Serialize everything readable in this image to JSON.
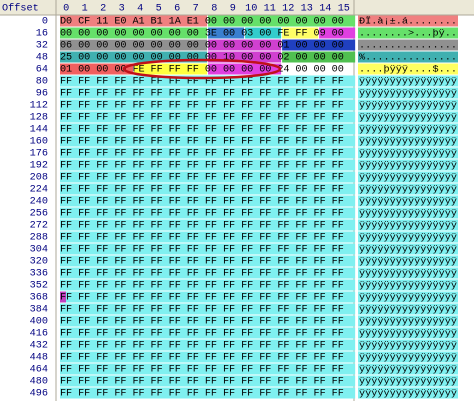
{
  "header": {
    "offset_label": "Offset",
    "columns": [
      "0",
      "1",
      "2",
      "3",
      "4",
      "5",
      "6",
      "7",
      "8",
      "9",
      "10",
      "11",
      "12",
      "13",
      "14",
      "15"
    ]
  },
  "rows": [
    {
      "offset": "0",
      "hex": "D0 CF 11 E0 A1 B1 1A E1 00 00 00 00 00 00 00 00",
      "ascii": "ÐÏ.à¡±.á........"
    },
    {
      "offset": "16",
      "hex": "00 00 00 00 00 00 00 00 3E 00 03 00 FE FF 09 00",
      "ascii": "........>...þÿ.."
    },
    {
      "offset": "32",
      "hex": "06 00 00 00 00 00 00 00 00 00 00 00 01 00 00 00",
      "ascii": "................"
    },
    {
      "offset": "48",
      "hex": "25 00 00 00 00 00 00 00 00 10 00 00 02 00 00 00",
      "ascii": "%..............."
    },
    {
      "offset": "64",
      "hex": "01 00 00 00 FE FF FF FF 00 00 00 00 24 00 00 00",
      "ascii": "....þÿÿÿ....$..."
    },
    {
      "offset": "80",
      "hex": "FF FF FF FF FF FF FF FF FF FF FF FF FF FF FF FF",
      "ascii": "ÿÿÿÿÿÿÿÿÿÿÿÿÿÿÿÿ"
    },
    {
      "offset": "96",
      "hex": "FF FF FF FF FF FF FF FF FF FF FF FF FF FF FF FF",
      "ascii": "ÿÿÿÿÿÿÿÿÿÿÿÿÿÿÿÿ"
    },
    {
      "offset": "112",
      "hex": "FF FF FF FF FF FF FF FF FF FF FF FF FF FF FF FF",
      "ascii": "ÿÿÿÿÿÿÿÿÿÿÿÿÿÿÿÿ"
    },
    {
      "offset": "128",
      "hex": "FF FF FF FF FF FF FF FF FF FF FF FF FF FF FF FF",
      "ascii": "ÿÿÿÿÿÿÿÿÿÿÿÿÿÿÿÿ"
    },
    {
      "offset": "144",
      "hex": "FF FF FF FF FF FF FF FF FF FF FF FF FF FF FF FF",
      "ascii": "ÿÿÿÿÿÿÿÿÿÿÿÿÿÿÿÿ"
    },
    {
      "offset": "160",
      "hex": "FF FF FF FF FF FF FF FF FF FF FF FF FF FF FF FF",
      "ascii": "ÿÿÿÿÿÿÿÿÿÿÿÿÿÿÿÿ"
    },
    {
      "offset": "176",
      "hex": "FF FF FF FF FF FF FF FF FF FF FF FF FF FF FF FF",
      "ascii": "ÿÿÿÿÿÿÿÿÿÿÿÿÿÿÿÿ"
    },
    {
      "offset": "192",
      "hex": "FF FF FF FF FF FF FF FF FF FF FF FF FF FF FF FF",
      "ascii": "ÿÿÿÿÿÿÿÿÿÿÿÿÿÿÿÿ"
    },
    {
      "offset": "208",
      "hex": "FF FF FF FF FF FF FF FF FF FF FF FF FF FF FF FF",
      "ascii": "ÿÿÿÿÿÿÿÿÿÿÿÿÿÿÿÿ"
    },
    {
      "offset": "224",
      "hex": "FF FF FF FF FF FF FF FF FF FF FF FF FF FF FF FF",
      "ascii": "ÿÿÿÿÿÿÿÿÿÿÿÿÿÿÿÿ"
    },
    {
      "offset": "240",
      "hex": "FF FF FF FF FF FF FF FF FF FF FF FF FF FF FF FF",
      "ascii": "ÿÿÿÿÿÿÿÿÿÿÿÿÿÿÿÿ"
    },
    {
      "offset": "256",
      "hex": "FF FF FF FF FF FF FF FF FF FF FF FF FF FF FF FF",
      "ascii": "ÿÿÿÿÿÿÿÿÿÿÿÿÿÿÿÿ"
    },
    {
      "offset": "272",
      "hex": "FF FF FF FF FF FF FF FF FF FF FF FF FF FF FF FF",
      "ascii": "ÿÿÿÿÿÿÿÿÿÿÿÿÿÿÿÿ"
    },
    {
      "offset": "288",
      "hex": "FF FF FF FF FF FF FF FF FF FF FF FF FF FF FF FF",
      "ascii": "ÿÿÿÿÿÿÿÿÿÿÿÿÿÿÿÿ"
    },
    {
      "offset": "304",
      "hex": "FF FF FF FF FF FF FF FF FF FF FF FF FF FF FF FF",
      "ascii": "ÿÿÿÿÿÿÿÿÿÿÿÿÿÿÿÿ"
    },
    {
      "offset": "320",
      "hex": "FF FF FF FF FF FF FF FF FF FF FF FF FF FF FF FF",
      "ascii": "ÿÿÿÿÿÿÿÿÿÿÿÿÿÿÿÿ"
    },
    {
      "offset": "336",
      "hex": "FF FF FF FF FF FF FF FF FF FF FF FF FF FF FF FF",
      "ascii": "ÿÿÿÿÿÿÿÿÿÿÿÿÿÿÿÿ"
    },
    {
      "offset": "352",
      "hex": "FF FF FF FF FF FF FF FF FF FF FF FF FF FF FF FF",
      "ascii": "ÿÿÿÿÿÿÿÿÿÿÿÿÿÿÿÿ"
    },
    {
      "offset": "368",
      "hex": "FF FF FF FF FF FF FF FF FF FF FF FF FF FF FF FF",
      "ascii": "ÿÿÿÿÿÿÿÿÿÿÿÿÿÿÿÿ"
    },
    {
      "offset": "384",
      "hex": "FF FF FF FF FF FF FF FF FF FF FF FF FF FF FF FF",
      "ascii": "ÿÿÿÿÿÿÿÿÿÿÿÿÿÿÿÿ"
    },
    {
      "offset": "400",
      "hex": "FF FF FF FF FF FF FF FF FF FF FF FF FF FF FF FF",
      "ascii": "ÿÿÿÿÿÿÿÿÿÿÿÿÿÿÿÿ"
    },
    {
      "offset": "416",
      "hex": "FF FF FF FF FF FF FF FF FF FF FF FF FF FF FF FF",
      "ascii": "ÿÿÿÿÿÿÿÿÿÿÿÿÿÿÿÿ"
    },
    {
      "offset": "432",
      "hex": "FF FF FF FF FF FF FF FF FF FF FF FF FF FF FF FF",
      "ascii": "ÿÿÿÿÿÿÿÿÿÿÿÿÿÿÿÿ"
    },
    {
      "offset": "448",
      "hex": "FF FF FF FF FF FF FF FF FF FF FF FF FF FF FF FF",
      "ascii": "ÿÿÿÿÿÿÿÿÿÿÿÿÿÿÿÿ"
    },
    {
      "offset": "464",
      "hex": "FF FF FF FF FF FF FF FF FF FF FF FF FF FF FF FF",
      "ascii": "ÿÿÿÿÿÿÿÿÿÿÿÿÿÿÿÿ"
    },
    {
      "offset": "480",
      "hex": "FF FF FF FF FF FF FF FF FF FF FF FF FF FF FF FF",
      "ascii": "ÿÿÿÿÿÿÿÿÿÿÿÿÿÿÿÿ"
    },
    {
      "offset": "496",
      "hex": "FF FF FF FF FF FF FF FF FF FF FF FF FF FF FF FF",
      "ascii": "ÿÿÿÿÿÿÿÿÿÿÿÿÿÿÿÿ"
    }
  ]
}
